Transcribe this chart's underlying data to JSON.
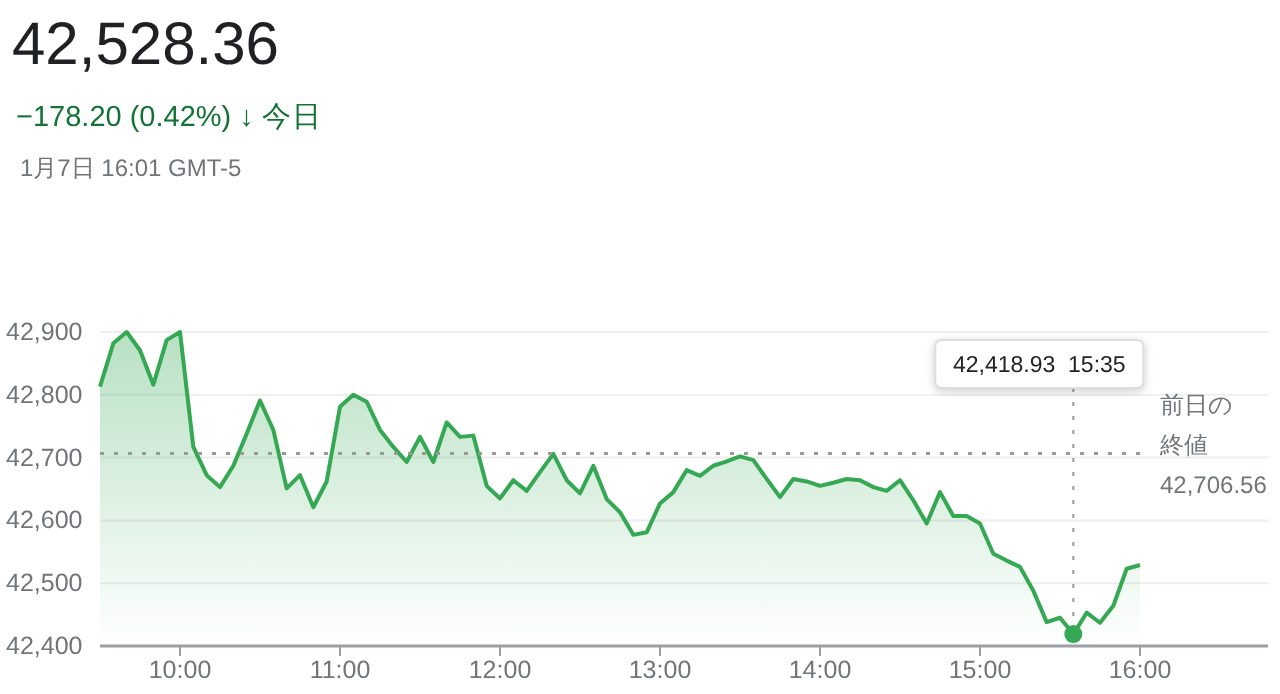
{
  "chart_data": {
    "type": "area",
    "title": "42,528.36",
    "subtitle": "−178.20 (0.42%) ↓ 今日",
    "annotations": [
      "1月7日 16:01 GMT-5",
      {
        "text": "42,418.93  15:35",
        "x": 15.5833,
        "y": 42418.93
      }
    ],
    "x": [
      9.5,
      9.5833,
      9.6667,
      9.75,
      9.8333,
      9.9167,
      10,
      10.0833,
      10.1667,
      10.25,
      10.3333,
      10.4167,
      10.5,
      10.5833,
      10.6667,
      10.75,
      10.8333,
      10.9167,
      11,
      11.0833,
      11.1667,
      11.25,
      11.3333,
      11.4167,
      11.5,
      11.5833,
      11.6667,
      11.75,
      11.8333,
      11.9167,
      12,
      12.0833,
      12.1667,
      12.25,
      12.3333,
      12.4167,
      12.5,
      12.5833,
      12.6667,
      12.75,
      12.8333,
      12.9167,
      13,
      13.0833,
      13.1667,
      13.25,
      13.3333,
      13.4167,
      13.5,
      13.5833,
      13.6667,
      13.75,
      13.8333,
      13.9167,
      14,
      14.0833,
      14.1667,
      14.25,
      14.3333,
      14.4167,
      14.5,
      14.5833,
      14.6667,
      14.75,
      14.8333,
      14.9167,
      15,
      15.0833,
      15.1667,
      15.25,
      15.3333,
      15.4167,
      15.5,
      15.5833,
      15.6667,
      15.75,
      15.8333,
      15.9167,
      16
    ],
    "series": [
      {
        "color": "#34a853",
        "values": [
          42813,
          42882,
          42900,
          42871,
          42816,
          42887,
          42900,
          42717,
          42672,
          42653,
          42687,
          42738,
          42791,
          42744,
          42651,
          42672,
          42621,
          42662,
          42781,
          42800,
          42789,
          42744,
          42717,
          42693,
          42733,
          42693,
          42756,
          42733,
          42735,
          42655,
          42635,
          42664,
          42647,
          42677,
          42706,
          42664,
          42643,
          42687,
          42634,
          42613,
          42577,
          42581,
          42627,
          42645,
          42680,
          42671,
          42687,
          42694,
          42702,
          42696,
          42666,
          42637,
          42666,
          42662,
          42655,
          42660,
          42666,
          42664,
          42653,
          42647,
          42664,
          42632,
          42595,
          42645,
          42607,
          42607,
          42595,
          42547,
          42536,
          42526,
          42488,
          42438,
          42445,
          42418.93,
          42453,
          42437,
          42464,
          42523,
          42529
        ]
      }
    ],
    "xlim": [
      9.5,
      16.8
    ],
    "xticks": [
      {
        "value": 10,
        "label": "10:00"
      },
      {
        "value": 11,
        "label": "11:00"
      },
      {
        "value": 12,
        "label": "12:00"
      },
      {
        "value": 13,
        "label": "13:00"
      },
      {
        "value": 14,
        "label": "14:00"
      },
      {
        "value": 15,
        "label": "15:00"
      },
      {
        "value": 16,
        "label": "16:00"
      }
    ],
    "ylim": [
      42400,
      42900
    ],
    "yticks": [
      {
        "value": 42400,
        "label": "42,400"
      },
      {
        "value": 42500,
        "label": "42,500"
      },
      {
        "value": 42600,
        "label": "42,600"
      },
      {
        "value": 42700,
        "label": "42,700"
      },
      {
        "value": 42800,
        "label": "42,800"
      },
      {
        "value": 42900,
        "label": "42,900"
      }
    ],
    "grid": "y",
    "marker": "none",
    "line_style": "solid",
    "ref_lines": [
      {
        "axis": "y",
        "value": 42706.56,
        "label": "前日の終値 42,706.56",
        "line_style": "dotted",
        "color": "#999999"
      }
    ]
  }
}
